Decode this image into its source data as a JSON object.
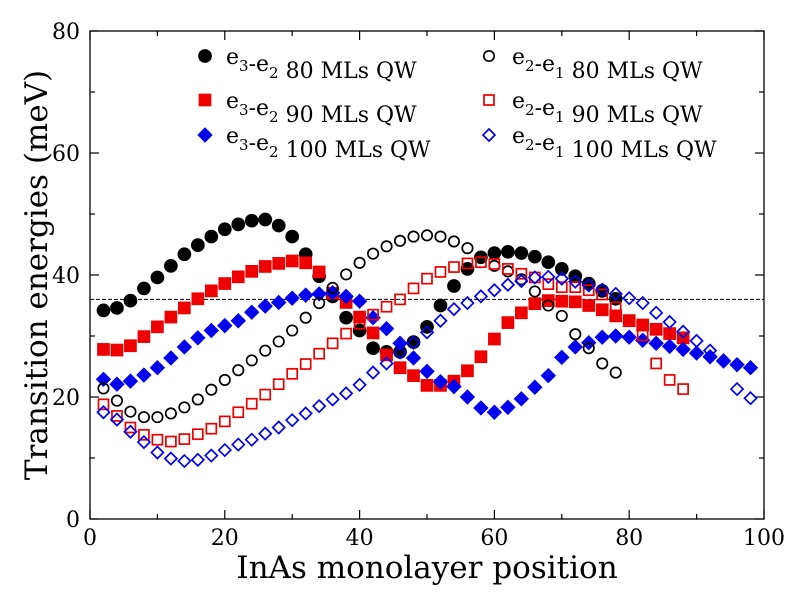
{
  "chart_data": {
    "type": "scatter",
    "title": "",
    "xlabel": "InAs monolayer position",
    "ylabel": "Transition energies (meV)",
    "xlim": [
      0,
      100
    ],
    "ylim": [
      0,
      80
    ],
    "xticks": [
      0,
      20,
      40,
      60,
      80,
      100
    ],
    "yticks": [
      0,
      20,
      40,
      60,
      80
    ],
    "xtick_labels": [
      "0",
      "20",
      "40",
      "60",
      "80",
      "100"
    ],
    "ytick_labels": [
      "0",
      "20",
      "40",
      "60",
      "80"
    ],
    "grid": false,
    "legend_position": "top",
    "reference_line": {
      "y": 36,
      "style": "dashed"
    },
    "series": [
      {
        "name": "e3-e2 80 MLs QW",
        "legend": {
          "a": "e",
          "a_sub": "3",
          "b": "e",
          "b_sub": "2",
          "qw": "80 MLs QW"
        },
        "marker": "circle",
        "filled": true,
        "color": "#000000",
        "x": [
          2,
          4,
          6,
          8,
          10,
          12,
          14,
          16,
          18,
          20,
          22,
          24,
          26,
          28,
          30,
          32,
          34,
          36,
          38,
          40,
          42,
          44,
          46,
          48,
          50,
          52,
          54,
          56,
          58,
          60,
          62,
          64,
          66,
          68,
          70,
          72,
          74,
          76,
          78
        ],
        "y": [
          34.2,
          34.6,
          35.8,
          37.8,
          39.6,
          41.5,
          43.4,
          44.9,
          46.3,
          47.5,
          48.3,
          48.9,
          49.1,
          48.1,
          46.3,
          43.4,
          39.8,
          36.5,
          33.0,
          30.9,
          28.0,
          27.4,
          27.4,
          29.0,
          31.5,
          35.0,
          38.2,
          41.0,
          42.9,
          43.6,
          43.8,
          43.6,
          43.0,
          42.1,
          41.0,
          39.8,
          38.6,
          37.4,
          36.1
        ]
      },
      {
        "name": "e3-e2 90 MLs QW",
        "legend": {
          "a": "e",
          "a_sub": "3",
          "b": "e",
          "b_sub": "2",
          "qw": "90 MLs QW"
        },
        "marker": "square",
        "filled": true,
        "color": "#ee0000",
        "x": [
          2,
          4,
          6,
          8,
          10,
          12,
          14,
          16,
          18,
          20,
          22,
          24,
          26,
          28,
          30,
          32,
          34,
          36,
          38,
          40,
          42,
          44,
          46,
          48,
          50,
          52,
          54,
          56,
          58,
          60,
          62,
          64,
          66,
          68,
          70,
          72,
          74,
          76,
          78,
          80,
          82,
          84,
          86,
          88
        ],
        "y": [
          27.8,
          27.7,
          28.4,
          29.9,
          31.5,
          33.1,
          34.6,
          36.1,
          37.4,
          38.6,
          39.7,
          40.6,
          41.4,
          41.9,
          42.3,
          42.0,
          40.5,
          37.0,
          35.5,
          33.1,
          30.5,
          26.9,
          24.8,
          23.5,
          21.9,
          21.9,
          22.6,
          24.3,
          26.6,
          29.5,
          32.2,
          33.8,
          35.3,
          35.8,
          35.7,
          35.6,
          35.0,
          34.3,
          33.3,
          32.5,
          31.8,
          31.1,
          30.4,
          29.7
        ]
      },
      {
        "name": "e3-e2 100 MLs QW",
        "legend": {
          "a": "e",
          "a_sub": "3",
          "b": "e",
          "b_sub": "2",
          "qw": "100 MLs QW"
        },
        "marker": "diamond",
        "filled": true,
        "color": "#0000ee",
        "x": [
          2,
          4,
          6,
          8,
          10,
          12,
          14,
          16,
          18,
          20,
          22,
          24,
          26,
          28,
          30,
          32,
          34,
          36,
          38,
          40,
          42,
          44,
          46,
          48,
          50,
          52,
          54,
          56,
          58,
          60,
          62,
          64,
          66,
          68,
          70,
          72,
          74,
          76,
          78,
          80,
          82,
          84,
          86,
          88,
          90,
          92,
          94,
          96,
          98
        ],
        "y": [
          22.9,
          22.1,
          22.6,
          23.6,
          24.8,
          26.4,
          28.2,
          29.7,
          30.9,
          31.7,
          32.5,
          33.9,
          34.9,
          35.5,
          36.2,
          36.7,
          36.9,
          37.1,
          36.5,
          35.7,
          33.0,
          31.2,
          28.8,
          26.4,
          24.2,
          22.5,
          21.7,
          20.0,
          18.2,
          17.5,
          18.3,
          19.7,
          21.6,
          23.5,
          26.5,
          28.2,
          28.9,
          29.8,
          30.0,
          29.8,
          29.3,
          28.8,
          28.3,
          27.8,
          27.2,
          26.6,
          25.9,
          25.3,
          24.8
        ]
      },
      {
        "name": "e2-e1 80 MLs QW",
        "legend": {
          "a": "e",
          "a_sub": "2",
          "b": "e",
          "b_sub": "1",
          "qw": "80 MLs QW"
        },
        "marker": "circle",
        "filled": false,
        "color": "#000000",
        "x": [
          2,
          4,
          6,
          8,
          10,
          12,
          14,
          16,
          18,
          20,
          22,
          24,
          26,
          28,
          30,
          32,
          34,
          36,
          38,
          40,
          42,
          44,
          46,
          48,
          50,
          52,
          54,
          56,
          58,
          60,
          62,
          64,
          66,
          68,
          70,
          72,
          74,
          76,
          78
        ],
        "y": [
          21.4,
          19.4,
          17.6,
          16.7,
          16.7,
          17.3,
          18.3,
          19.6,
          21.2,
          22.8,
          24.4,
          26.0,
          27.6,
          29.1,
          30.9,
          33.0,
          35.4,
          37.9,
          40.1,
          42.0,
          43.5,
          44.7,
          45.6,
          46.3,
          46.5,
          46.3,
          45.5,
          44.4,
          42.9,
          41.5,
          40.6,
          39.3,
          37.3,
          35.0,
          33.3,
          30.3,
          28.0,
          25.5,
          24.0
        ]
      },
      {
        "name": "e2-e1 90 MLs QW",
        "legend": {
          "a": "e",
          "a_sub": "2",
          "b": "e",
          "b_sub": "1",
          "qw": "90 MLs QW"
        },
        "marker": "square",
        "filled": false,
        "color": "#ee0000",
        "x": [
          2,
          4,
          6,
          8,
          10,
          12,
          14,
          16,
          18,
          20,
          22,
          24,
          26,
          28,
          30,
          32,
          34,
          36,
          38,
          40,
          42,
          44,
          46,
          48,
          50,
          52,
          54,
          56,
          58,
          60,
          62,
          64,
          66,
          68,
          70,
          72,
          74,
          76,
          78,
          80,
          82,
          84,
          86,
          88
        ],
        "y": [
          18.8,
          16.9,
          15.0,
          13.8,
          13.0,
          12.7,
          13.1,
          13.9,
          14.8,
          16.0,
          17.5,
          18.9,
          20.4,
          22.1,
          23.8,
          25.4,
          27.1,
          28.8,
          30.4,
          32.0,
          33.5,
          34.8,
          36.0,
          37.8,
          39.4,
          40.5,
          41.3,
          41.9,
          42.1,
          41.8,
          41.0,
          40.2,
          39.6,
          38.5,
          38.0,
          38.0,
          37.5,
          36.8,
          34.7,
          32.6,
          30.1,
          25.5,
          22.8,
          21.3
        ]
      },
      {
        "name": "e2-e1 100 MLs QW",
        "legend": {
          "a": "e",
          "a_sub": "2",
          "b": "e",
          "b_sub": "1",
          "qw": "100 MLs QW"
        },
        "marker": "diamond",
        "filled": false,
        "color": "#0000ee",
        "x": [
          2,
          4,
          6,
          8,
          10,
          12,
          14,
          16,
          18,
          20,
          22,
          24,
          26,
          28,
          30,
          32,
          34,
          36,
          38,
          40,
          42,
          44,
          46,
          48,
          50,
          52,
          54,
          56,
          58,
          60,
          62,
          64,
          66,
          68,
          70,
          72,
          74,
          76,
          78,
          80,
          82,
          84,
          86,
          88,
          90,
          92,
          94,
          96,
          98
        ],
        "y": [
          17.5,
          16.3,
          14.3,
          12.6,
          10.9,
          9.9,
          9.5,
          9.7,
          10.4,
          11.3,
          12.2,
          13.0,
          14.0,
          15.0,
          16.2,
          17.3,
          18.5,
          19.6,
          20.6,
          22.0,
          24.0,
          25.5,
          27.3,
          28.9,
          30.6,
          32.5,
          34.4,
          35.4,
          36.5,
          37.5,
          38.4,
          39.0,
          39.6,
          39.7,
          39.4,
          38.9,
          38.3,
          37.6,
          36.9,
          36.2,
          35.4,
          33.8,
          32.3,
          30.7,
          29.2,
          27.6,
          26.0,
          21.3,
          19.8
        ]
      }
    ]
  }
}
